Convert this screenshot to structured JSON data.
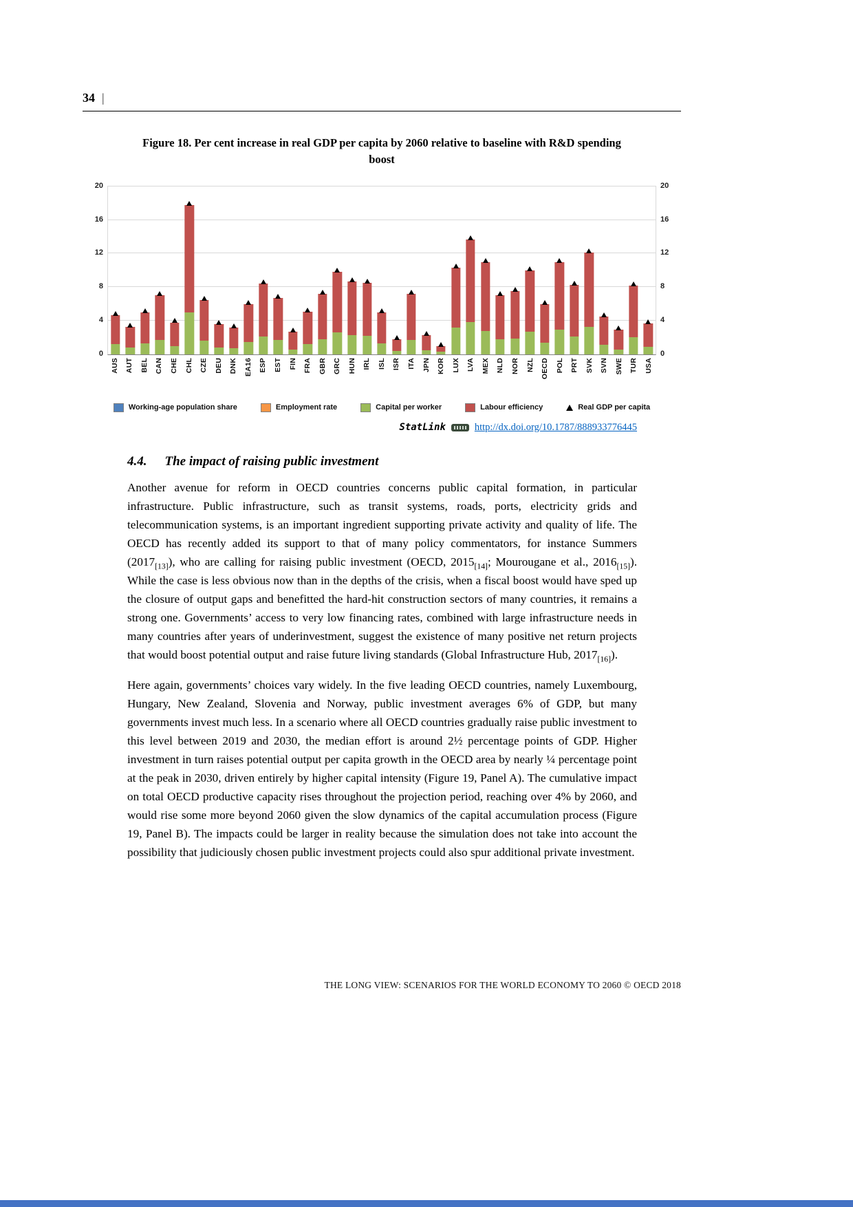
{
  "page": {
    "number": "34",
    "number_suffix": "|",
    "footer": "THE LONG VIEW: SCENARIOS FOR THE WORLD ECONOMY TO 2060 © OECD 2018"
  },
  "figure": {
    "title": "Figure 18. Per cent increase in real GDP per capita by 2060 relative to baseline with R&D spending boost",
    "statlink_label": "StatLink",
    "statlink_url": "http://dx.doi.org/10.1787/888933776445"
  },
  "section": {
    "number": "4.4.",
    "title": "The impact of raising public investment",
    "paragraphs": [
      "Another avenue for reform in OECD countries concerns public capital formation, in particular infrastructure. Public infrastructure, such as transit systems, roads, ports, electricity grids and telecommunication systems, is an important ingredient supporting private activity and quality of life. The OECD has recently added its support to that of many policy commentators, for instance Summers (2017[13]), who are calling for raising public investment (OECD, 2015[14]; Mourougane et al., 2016[15]). While the case is less obvious now than in the depths of the crisis, when a fiscal boost would have sped up the closure of output gaps and benefitted the hard-hit construction sectors of many countries, it remains a strong one. Governments’ access to very low financing rates, combined with large infrastructure needs in many countries after years of underinvestment, suggest the existence of many positive net return projects that would boost potential output and raise future living standards (Global Infrastructure Hub, 2017[16]).",
      "Here again, governments’ choices vary widely. In the five leading OECD countries, namely Luxembourg, Hungary, New Zealand, Slovenia and Norway, public investment averages 6% of GDP, but many governments invest much less. In a scenario where all OECD countries gradually raise public investment to this level between 2019 and 2030, the median effort is around 2½ percentage points of GDP. Higher investment in turn raises potential output per capita growth in the OECD area by nearly ¼ percentage point at the peak in 2030, driven entirely by higher capital intensity (Figure 19, Panel A). The cumulative impact on total OECD productive capacity rises throughout the projection period, reaching over 4% by 2060, and would rise some more beyond 2060 given the slow dynamics of the capital accumulation process (Figure 19, Panel B). The impacts could be larger in reality because the simulation does not take into account the possibility that judiciously chosen public investment projects could also spur additional private investment."
    ]
  },
  "chart_data": {
    "type": "bar",
    "stacked": true,
    "title": "Per cent increase in real GDP per capita by 2060 relative to baseline with R&D spending boost",
    "xlabel": "",
    "ylabel": "",
    "ylim": [
      0,
      20
    ],
    "yticks": [
      0,
      4,
      8,
      12,
      16,
      20
    ],
    "grid": true,
    "legend_position": "bottom",
    "categories": [
      "AUS",
      "AUT",
      "BEL",
      "CAN",
      "CHE",
      "CHL",
      "CZE",
      "DEU",
      "DNK",
      "EA16",
      "ESP",
      "EST",
      "FIN",
      "FRA",
      "GBR",
      "GRC",
      "HUN",
      "IRL",
      "ISL",
      "ISR",
      "ITA",
      "JPN",
      "KOR",
      "LUX",
      "LVA",
      "MEX",
      "NLD",
      "NOR",
      "NZL",
      "OECD",
      "POL",
      "PRT",
      "SVK",
      "SVN",
      "SWE",
      "TUR",
      "USA"
    ],
    "series": [
      {
        "name": "Capital per worker",
        "color": "#9BBB59",
        "values": [
          1.2,
          0.8,
          1.3,
          1.7,
          1.0,
          5.0,
          1.6,
          0.8,
          0.7,
          1.5,
          2.1,
          1.7,
          0.6,
          1.2,
          1.8,
          2.6,
          2.3,
          2.2,
          1.3,
          0.4,
          1.7,
          0.5,
          0.3,
          3.2,
          3.8,
          2.8,
          1.8,
          1.9,
          2.7,
          1.4,
          2.9,
          2.1,
          3.3,
          1.1,
          0.6,
          2.0,
          0.9
        ]
      },
      {
        "name": "Labour efficiency",
        "color": "#C0504D",
        "values": [
          3.5,
          2.5,
          3.7,
          5.3,
          2.8,
          12.8,
          4.9,
          2.8,
          2.5,
          4.5,
          6.3,
          5.0,
          2.1,
          3.9,
          5.4,
          7.2,
          6.4,
          6.3,
          3.7,
          1.4,
          5.5,
          1.8,
          0.7,
          7.1,
          9.9,
          8.2,
          5.2,
          5.6,
          7.3,
          4.6,
          8.1,
          6.2,
          8.8,
          3.4,
          2.3,
          6.2,
          2.8
        ]
      }
    ],
    "marker_series": {
      "name": "Real GDP per capita",
      "marker": "triangle",
      "color": "#000000",
      "values": [
        4.7,
        3.3,
        5.0,
        7.0,
        3.8,
        17.8,
        6.5,
        3.6,
        3.2,
        6.0,
        8.4,
        6.7,
        2.7,
        5.1,
        7.2,
        9.8,
        8.7,
        8.5,
        5.0,
        1.8,
        7.2,
        2.3,
        1.0,
        10.3,
        13.7,
        11.0,
        7.0,
        7.5,
        10.0,
        6.0,
        11.0,
        8.3,
        12.1,
        4.5,
        2.9,
        8.2,
        3.7
      ]
    },
    "legend": [
      {
        "label": "Working-age population share",
        "color": "#4F81BD",
        "type": "square"
      },
      {
        "label": "Employment rate",
        "color": "#F79646",
        "type": "square"
      },
      {
        "label": "Capital per worker",
        "color": "#9BBB59",
        "type": "square"
      },
      {
        "label": "Labour efficiency",
        "color": "#C0504D",
        "type": "square"
      },
      {
        "label": "Real GDP per capita",
        "color": "#000000",
        "type": "triangle"
      }
    ]
  }
}
